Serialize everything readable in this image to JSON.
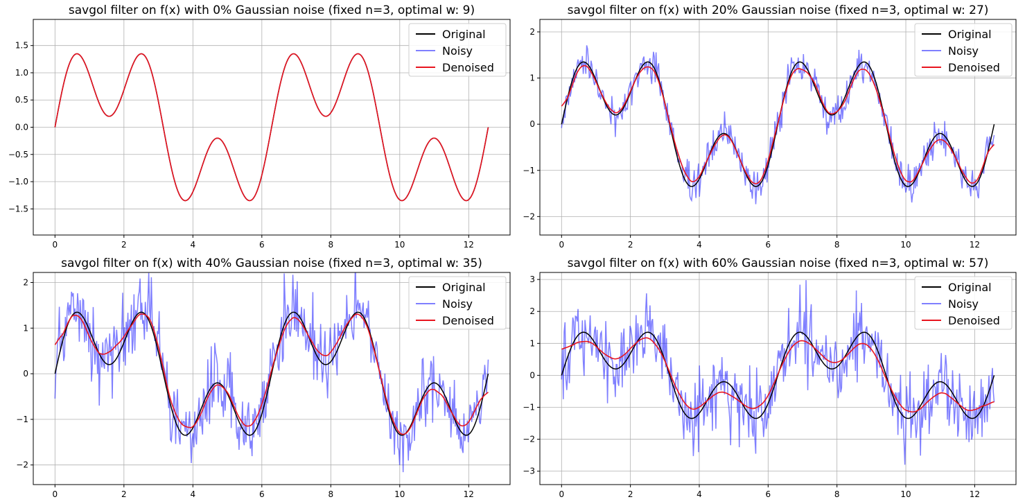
{
  "colors": {
    "original": "#000000",
    "noisy": "#0000ff",
    "denoised": "#e8141e"
  },
  "legend": {
    "placement": "top-right",
    "entries": [
      "Original",
      "Noisy",
      "Denoised"
    ]
  },
  "chart_data": [
    {
      "type": "line",
      "title": "savgol filter on f(x) with 0% Gaussian noise (fixed n=3, optimal w: 9)",
      "xlim": [
        -0.63,
        13.2
      ],
      "ylim": [
        -1.98,
        1.98
      ],
      "xticks": [
        0,
        2,
        4,
        6,
        8,
        10,
        12
      ],
      "yticks": [
        -1.5,
        -1.0,
        -0.5,
        0.0,
        0.5,
        1.0,
        1.5
      ],
      "ytick_labels": [
        "−1.5",
        "−1.0",
        "−0.5",
        "0.0",
        "0.5",
        "1.0",
        "1.5"
      ],
      "grid": true,
      "noise_level": 0,
      "window": 9,
      "x_range": [
        0,
        12.566
      ],
      "series": [
        {
          "name": "Original",
          "formula": "sin(x)+0.8*sin(3x)",
          "style": "line"
        },
        {
          "name": "Noisy",
          "noise_sd": 0.0
        },
        {
          "name": "Denoised",
          "savgol": {
            "order": 3,
            "window": 9
          }
        }
      ]
    },
    {
      "type": "line",
      "title": "savgol filter on f(x) with 20% Gaussian noise (fixed n=3, optimal w: 27)",
      "xlim": [
        -0.63,
        13.2
      ],
      "ylim": [
        -2.4,
        2.27
      ],
      "xticks": [
        0,
        2,
        4,
        6,
        8,
        10,
        12
      ],
      "yticks": [
        -2,
        -1,
        0,
        1,
        2
      ],
      "ytick_labels": [
        "−2",
        "−1",
        "0",
        "1",
        "2"
      ],
      "grid": true,
      "noise_level": 0.2,
      "window": 27,
      "x_range": [
        0,
        12.566
      ],
      "series": [
        {
          "name": "Original",
          "formula": "sin(x)+0.8*sin(3x)"
        },
        {
          "name": "Noisy",
          "noise_sd": 0.2
        },
        {
          "name": "Denoised",
          "savgol": {
            "order": 3,
            "window": 27
          }
        }
      ]
    },
    {
      "type": "line",
      "title": "savgol filter on f(x) with 40% Gaussian noise (fixed n=3, optimal w: 35)",
      "xlim": [
        -0.63,
        13.2
      ],
      "ylim": [
        -2.43,
        2.22
      ],
      "xticks": [
        0,
        2,
        4,
        6,
        8,
        10,
        12
      ],
      "yticks": [
        -2,
        -1,
        0,
        1,
        2
      ],
      "ytick_labels": [
        "−2",
        "−1",
        "0",
        "1",
        "2"
      ],
      "grid": true,
      "noise_level": 0.4,
      "window": 35,
      "x_range": [
        0,
        12.566
      ],
      "series": [
        {
          "name": "Original",
          "formula": "sin(x)+0.8*sin(3x)"
        },
        {
          "name": "Noisy",
          "noise_sd": 0.4
        },
        {
          "name": "Denoised",
          "savgol": {
            "order": 3,
            "window": 35
          }
        }
      ]
    },
    {
      "type": "line",
      "title": "savgol filter on f(x) with 60% Gaussian noise (fixed n=3, optimal w: 57)",
      "xlim": [
        -0.63,
        13.2
      ],
      "ylim": [
        -3.42,
        3.22
      ],
      "xticks": [
        0,
        2,
        4,
        6,
        8,
        10,
        12
      ],
      "yticks": [
        -3,
        -2,
        -1,
        0,
        1,
        2,
        3
      ],
      "ytick_labels": [
        "−3",
        "−2",
        "−1",
        "0",
        "1",
        "2",
        "3"
      ],
      "grid": true,
      "noise_level": 0.6,
      "window": 57,
      "x_range": [
        0,
        12.566
      ],
      "series": [
        {
          "name": "Original",
          "formula": "sin(x)+0.8*sin(3x)"
        },
        {
          "name": "Noisy",
          "noise_sd": 0.6
        },
        {
          "name": "Denoised",
          "savgol": {
            "order": 3,
            "window": 57
          }
        }
      ]
    }
  ]
}
